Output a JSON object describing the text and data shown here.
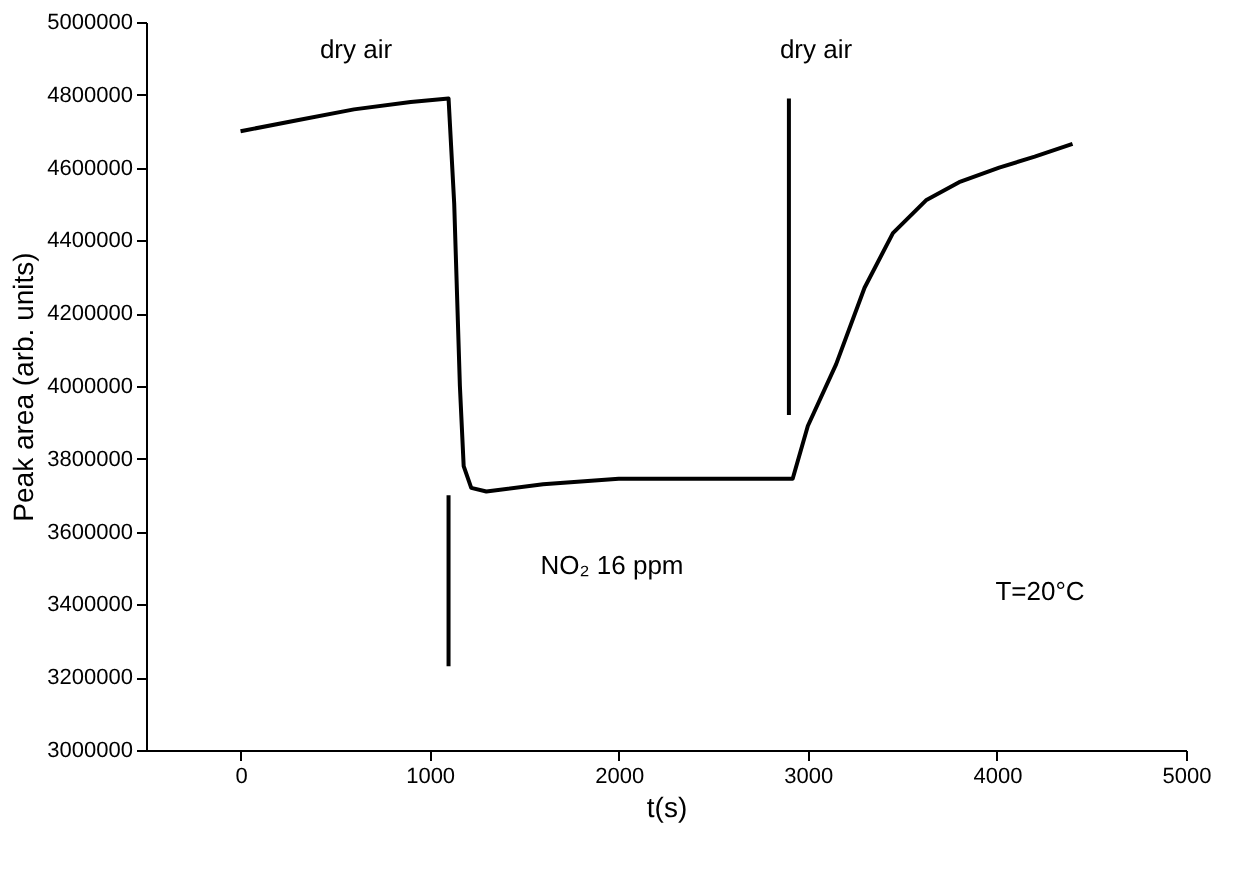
{
  "chart_data": {
    "type": "line",
    "xlabel": "t(s)",
    "ylabel": "Peak area (arb. units)",
    "xlim": [
      -500,
      5000
    ],
    "xticks": [
      0,
      1000,
      2000,
      3000,
      4000,
      5000
    ],
    "ylim": [
      3000000,
      5000000
    ],
    "yticks": [
      3000000,
      3200000,
      3400000,
      3600000,
      3800000,
      4000000,
      4200000,
      4400000,
      4600000,
      4800000,
      5000000
    ],
    "grid": false,
    "marker": "none",
    "line_style": "solid",
    "series": [
      {
        "color": "#000000",
        "x": [
          0,
          300,
          600,
          900,
          1100,
          1130,
          1160,
          1180,
          1220,
          1300,
          1600,
          2000,
          2500,
          2920,
          3000,
          3150,
          3300,
          3450,
          3625,
          3800,
          4012,
          4200,
          4400
        ],
        "values": [
          4700000,
          4730000,
          4760000,
          4780000,
          4790000,
          4500000,
          4000000,
          3780000,
          3720000,
          3710000,
          3730000,
          3745000,
          3745000,
          3745000,
          3890000,
          4060000,
          4270000,
          4420000,
          4510000,
          4560000,
          4600000,
          4630000,
          4665000
        ]
      },
      {
        "color": "#000000",
        "x": [
          1100,
          1100
        ],
        "values": [
          3230000,
          3700000
        ]
      },
      {
        "color": "#000000",
        "x": [
          2900,
          2900
        ],
        "values": [
          3920000,
          4790000
        ]
      }
    ],
    "annotations": [
      "dry air",
      "dry air",
      "NO₂ 16 ppm",
      "T=20°C"
    ]
  }
}
